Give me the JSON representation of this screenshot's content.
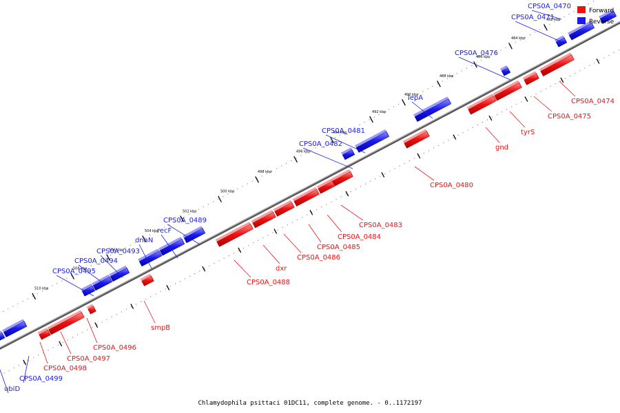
{
  "caption": "Chlamydophila psittaci 01DC11, complete genome. - 0..1172197",
  "colors": {
    "forward": "#ee1111",
    "reverse": "#1a1aee",
    "backbone": "#555555"
  },
  "legend": [
    {
      "label": "Forward",
      "strand": "forward"
    },
    {
      "label": "Reverse",
      "strand": "reverse"
    }
  ],
  "ticks": [
    "482 kbp",
    "484 kbp",
    "486 kbp",
    "488 kbp",
    "490 kbp",
    "492 kbp",
    "494 kbp",
    "496 kbp",
    "498 kbp",
    "500 kbp",
    "502 kbp",
    "504 kbp",
    "506 kbp",
    "508 kbp",
    "510 kbp"
  ],
  "genes": [
    {
      "name": "CPS0A_0470",
      "strand": "reverse",
      "labeled": true
    },
    {
      "name": "CPS0A_0471",
      "strand": "reverse",
      "labeled": true
    },
    {
      "name": "CPS0A_0474",
      "strand": "forward",
      "labeled": true
    },
    {
      "name": "CPS0A_0475",
      "strand": "forward",
      "labeled": true
    },
    {
      "name": "CPS0A_0476",
      "strand": "reverse",
      "labeled": true
    },
    {
      "name": "tyrS",
      "strand": "forward",
      "labeled": true
    },
    {
      "name": "lepA",
      "strand": "reverse",
      "labeled": true
    },
    {
      "name": "gnd",
      "strand": "forward",
      "labeled": true
    },
    {
      "name": "CPS0A_0480",
      "strand": "forward",
      "labeled": true
    },
    {
      "name": "CPS0A_0481",
      "strand": "reverse",
      "labeled": true
    },
    {
      "name": "CPS0A_0482",
      "strand": "reverse",
      "labeled": true
    },
    {
      "name": "CPS0A_0483",
      "strand": "forward",
      "labeled": true
    },
    {
      "name": "CPS0A_0484",
      "strand": "forward",
      "labeled": true
    },
    {
      "name": "CPS0A_0485",
      "strand": "forward",
      "labeled": true
    },
    {
      "name": "CPS0A_0486",
      "strand": "forward",
      "labeled": true
    },
    {
      "name": "dxr",
      "strand": "forward",
      "labeled": true
    },
    {
      "name": "CPS0A_0488",
      "strand": "forward",
      "labeled": true
    },
    {
      "name": "CPS0A_0489",
      "strand": "reverse",
      "labeled": true
    },
    {
      "name": "recF",
      "strand": "reverse",
      "labeled": true
    },
    {
      "name": "dnaN",
      "strand": "reverse",
      "labeled": true
    },
    {
      "name": "smpB",
      "strand": "forward",
      "labeled": true
    },
    {
      "name": "CPS0A_0493",
      "strand": "reverse",
      "labeled": true
    },
    {
      "name": "CPS0A_0494",
      "strand": "reverse",
      "labeled": true
    },
    {
      "name": "CPS0A_0495",
      "strand": "reverse",
      "labeled": true
    },
    {
      "name": "CPS0A_0496",
      "strand": "forward",
      "labeled": true
    },
    {
      "name": "CPS0A_0497",
      "strand": "forward",
      "labeled": true
    },
    {
      "name": "CPS0A_0498",
      "strand": "forward",
      "labeled": true
    },
    {
      "name": "CPS0A_0499",
      "strand": "reverse",
      "labeled": true
    },
    {
      "name": "ubiD",
      "strand": "reverse",
      "labeled": true
    },
    {
      "name": "",
      "strand": "reverse",
      "labeled": false
    },
    {
      "name": "",
      "strand": "reverse",
      "labeled": false
    },
    {
      "name": "",
      "strand": "reverse",
      "labeled": false
    }
  ]
}
